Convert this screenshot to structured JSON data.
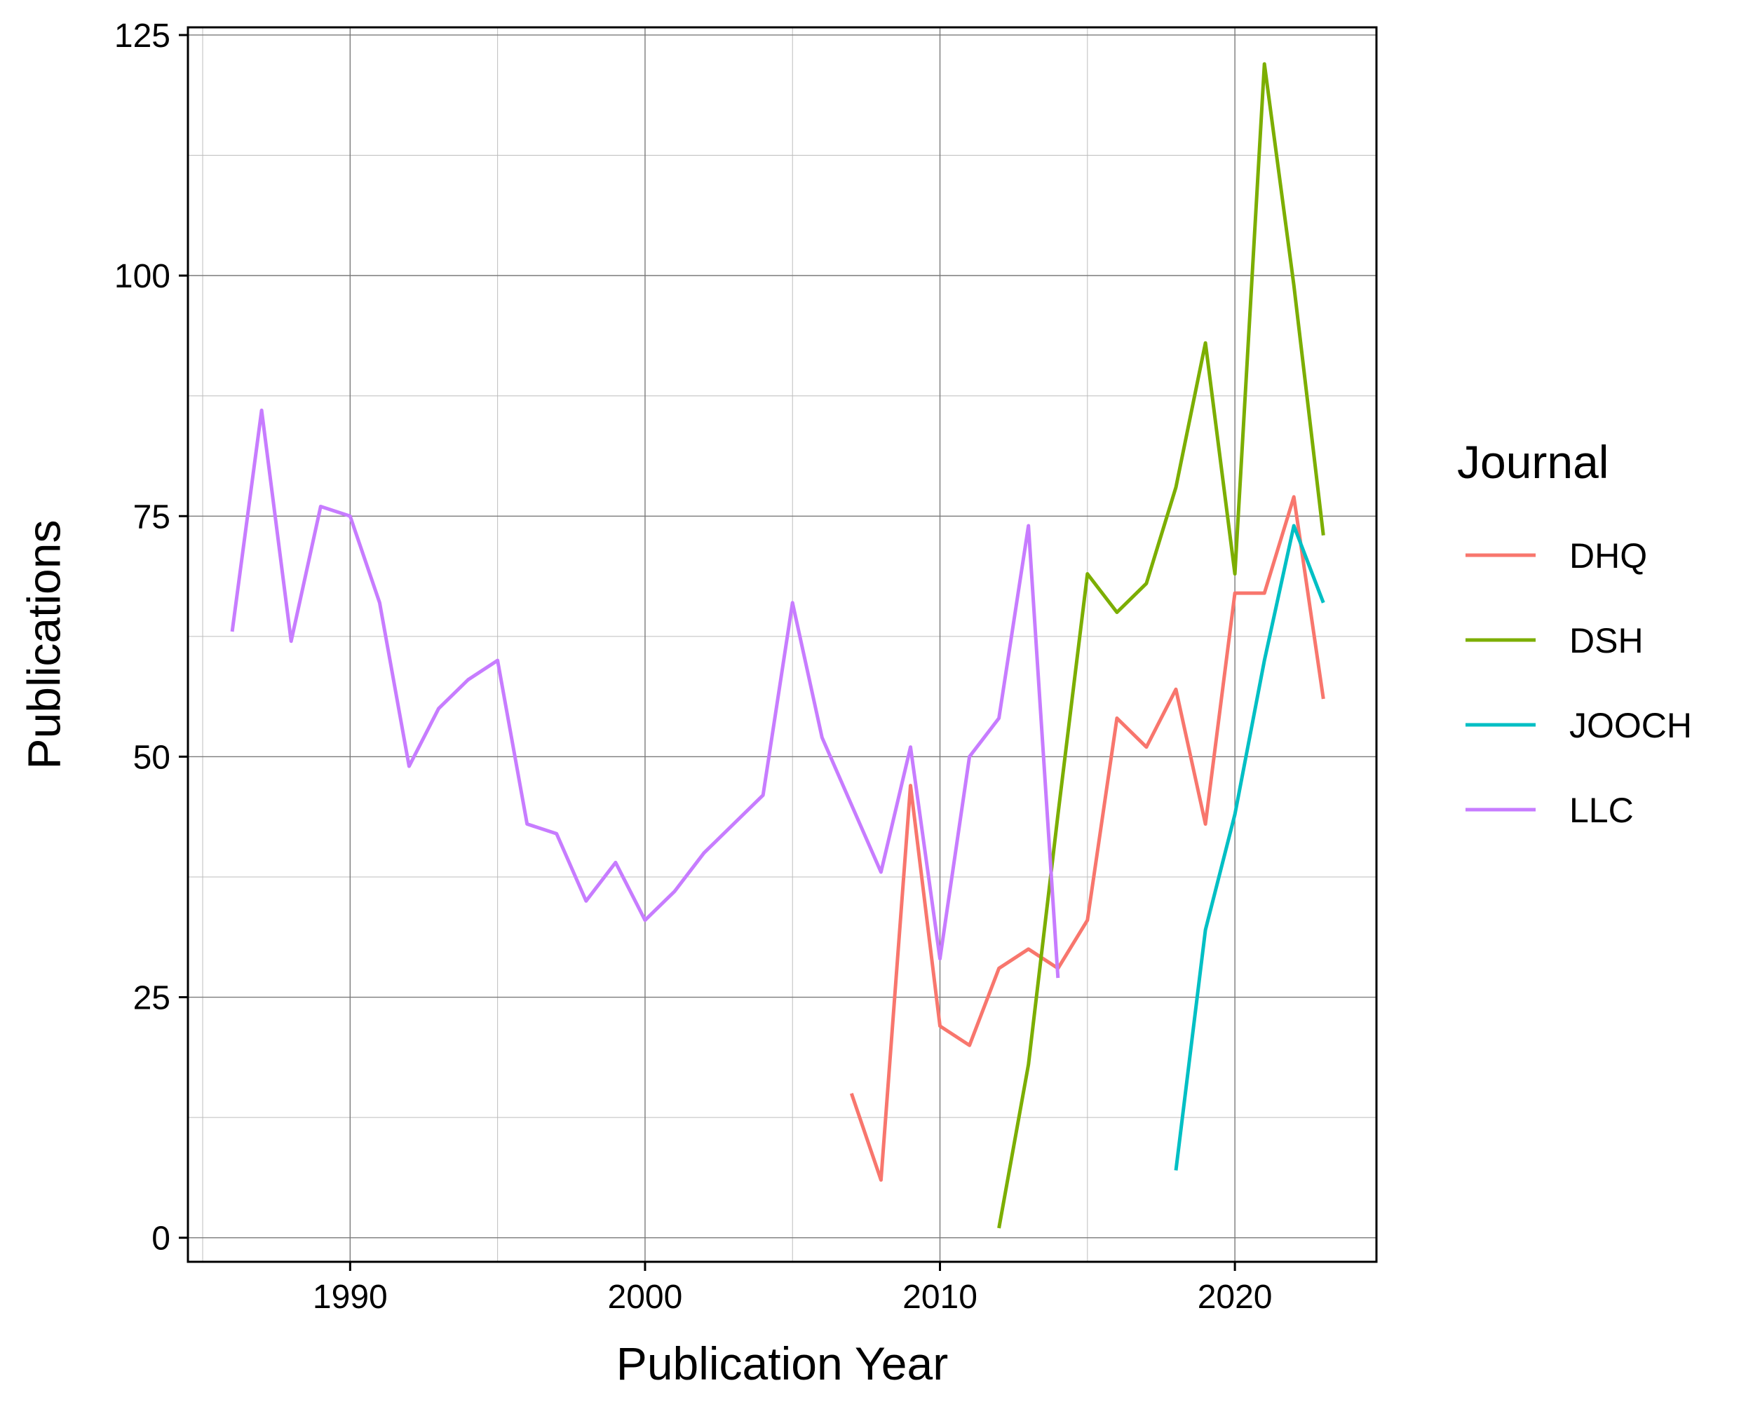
{
  "chart_data": {
    "type": "line",
    "xlabel": "Publication Year",
    "ylabel": "Publications",
    "xlim": [
      1984.5,
      2024.8
    ],
    "ylim": [
      -2.5,
      125.8
    ],
    "x_ticks": [
      1990,
      2000,
      2010,
      2020
    ],
    "x_tick_labels": [
      "1990",
      "2000",
      "2010",
      "2020"
    ],
    "y_ticks": [
      0,
      25,
      50,
      75,
      100,
      125
    ],
    "y_tick_labels": [
      "0",
      "25",
      "50",
      "75",
      "100",
      "125"
    ],
    "x_minor_ticks": [
      1985,
      1995,
      2005,
      2015
    ],
    "y_minor_ticks": [
      12.5,
      37.5,
      62.5,
      87.5,
      112.5
    ],
    "grid": true,
    "legend": {
      "title": "Journal",
      "position": "right"
    },
    "series": [
      {
        "name": "DHQ",
        "color": "#F8766D",
        "x": [
          2007,
          2008,
          2009,
          2010,
          2011,
          2012,
          2013,
          2014,
          2015,
          2016,
          2017,
          2018,
          2019,
          2020,
          2021,
          2022,
          2023
        ],
        "y": [
          15,
          6,
          47,
          22,
          20,
          28,
          30,
          28,
          33,
          54,
          51,
          57,
          43,
          67,
          67,
          77,
          56
        ]
      },
      {
        "name": "DSH",
        "color": "#7CAE00",
        "x": [
          2012,
          2013,
          2014,
          2015,
          2016,
          2017,
          2018,
          2019,
          2020,
          2021,
          2022,
          2023
        ],
        "y": [
          1,
          18,
          44,
          69,
          65,
          68,
          78,
          93,
          69,
          122,
          99,
          73
        ]
      },
      {
        "name": "JOOCH",
        "color": "#00BFC4",
        "x": [
          2018,
          2019,
          2020,
          2021,
          2022,
          2023
        ],
        "y": [
          7,
          32,
          44,
          60,
          74,
          66
        ]
      },
      {
        "name": "LLC",
        "color": "#C77CFF",
        "x": [
          1986,
          1987,
          1988,
          1989,
          1990,
          1991,
          1992,
          1993,
          1994,
          1995,
          1996,
          1997,
          1998,
          1999,
          2000,
          2001,
          2002,
          2003,
          2004,
          2005,
          2006,
          2007,
          2008,
          2009,
          2010,
          2011,
          2012,
          2013,
          2014
        ],
        "y": [
          63,
          86,
          62,
          76,
          75,
          66,
          49,
          55,
          58,
          60,
          43,
          42,
          35,
          39,
          33,
          36,
          40,
          43,
          46,
          66,
          52,
          45,
          38,
          51,
          29,
          50,
          54,
          74,
          27
        ]
      }
    ]
  }
}
